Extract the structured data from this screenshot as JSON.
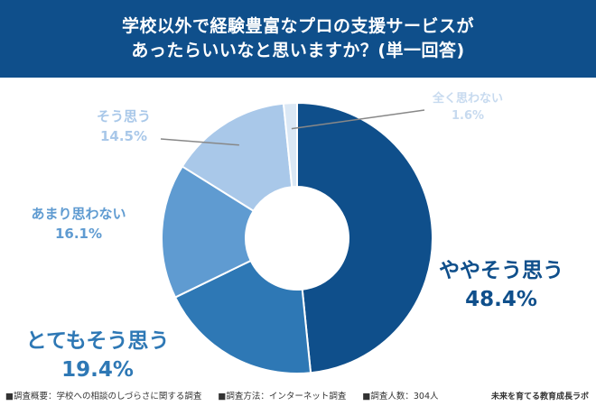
{
  "header": {
    "title_line1": "学校以外で経験豊富なプロの支援サービスが",
    "title_line2": "あったらいいなと思いますか？(単一回答)"
  },
  "chart_data": {
    "type": "pie",
    "title": "学校以外で経験豊富なプロの支援サービスがあったらいいなと思いますか？(単一回答)",
    "donut": true,
    "categories": [
      "ややそう思う",
      "とてもそう思う",
      "あまり思わない",
      "そう思う",
      "全く思わない"
    ],
    "values": [
      48.4,
      19.4,
      16.1,
      14.5,
      1.6
    ],
    "value_labels": [
      "48.4%",
      "19.4%",
      "16.1%",
      "14.5%",
      "1.6%"
    ],
    "colors": [
      "#0f4f8b",
      "#2e78b5",
      "#5f9bd1",
      "#a9c8e9",
      "#dbe8f5"
    ],
    "label_colors": [
      "#0f4f8b",
      "#2e78b5",
      "#5f9bd1",
      "#a9c8e9",
      "#c7daef"
    ],
    "start_angle_deg": 0,
    "direction": "clockwise",
    "legend": "none"
  },
  "footer": {
    "note1": "■調査概要：学校への相談のしづらさに関する調査",
    "note2": "■調査方法：インターネット調査",
    "note3": "■調査人数：304人",
    "brand": "未来を育てる教育成長ラボ"
  }
}
